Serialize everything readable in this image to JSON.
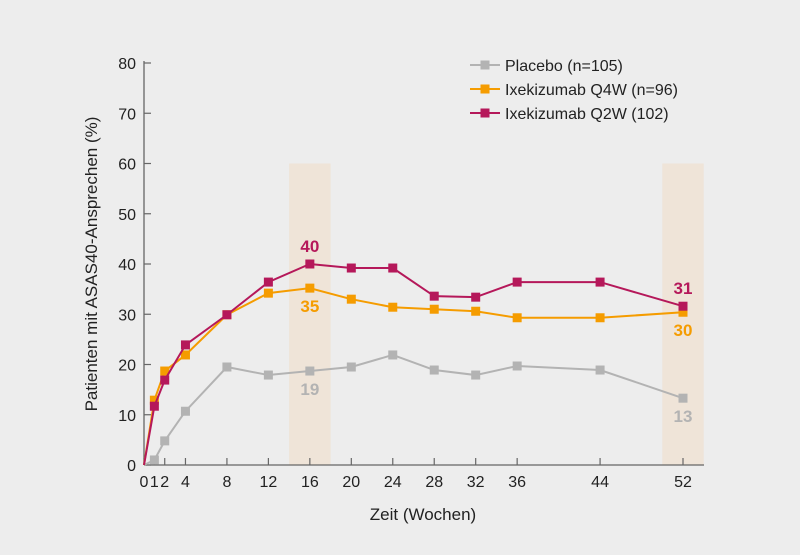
{
  "chart_data": {
    "type": "line",
    "title": "",
    "xlabel": "Zeit (Wochen)",
    "ylabel": "Patienten mit ASAS40-Ansprechen (%)",
    "ylim": [
      0,
      80
    ],
    "xlim": [
      0,
      54
    ],
    "yticks": [
      0,
      10,
      20,
      30,
      40,
      50,
      60,
      70,
      80
    ],
    "xticks": [
      0,
      1,
      2,
      4,
      8,
      12,
      16,
      20,
      24,
      28,
      32,
      36,
      44,
      52
    ],
    "x": [
      0,
      1,
      2,
      4,
      8,
      12,
      16,
      20,
      24,
      28,
      32,
      36,
      44,
      52
    ],
    "highlight_bands": [
      [
        14,
        18
      ],
      [
        50,
        54
      ]
    ],
    "legend_position": "top-right",
    "series": [
      {
        "name": "Placebo (n=105)",
        "color": "#b3b3b3",
        "values": [
          0,
          1.0,
          4.8,
          10.7,
          19.5,
          17.9,
          18.7,
          19.5,
          21.9,
          18.9,
          17.9,
          19.7,
          18.9,
          13.3
        ],
        "labels": [
          {
            "x": 16,
            "text": "19",
            "pos": "below"
          },
          {
            "x": 52,
            "text": "13",
            "pos": "below"
          }
        ]
      },
      {
        "name": "Ixekizumab Q4W (n=96)",
        "color": "#f59c00",
        "values": [
          0,
          12.9,
          18.7,
          21.9,
          29.9,
          34.2,
          35.2,
          33.0,
          31.4,
          31.0,
          30.6,
          29.3,
          29.3,
          30.4
        ],
        "labels": [
          {
            "x": 16,
            "text": "35",
            "pos": "below"
          },
          {
            "x": 52,
            "text": "30",
            "pos": "below"
          }
        ]
      },
      {
        "name": "Ixekizumab Q2W (102)",
        "color": "#b5185a",
        "values": [
          0,
          11.7,
          16.9,
          23.9,
          29.9,
          36.4,
          40.0,
          39.2,
          39.2,
          33.6,
          33.4,
          36.4,
          36.4,
          31.6
        ],
        "labels": [
          {
            "x": 16,
            "text": "40",
            "pos": "above"
          },
          {
            "x": 52,
            "text": "31",
            "pos": "above"
          }
        ]
      }
    ]
  }
}
